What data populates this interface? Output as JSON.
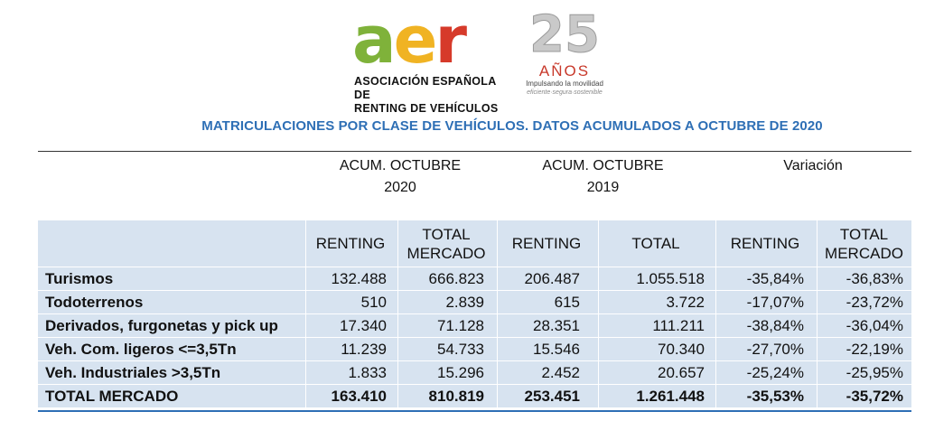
{
  "logo": {
    "aer": [
      "a",
      "e",
      "r"
    ],
    "org_line1": "ASOCIACIÓN ESPAÑOLA DE",
    "org_line2": "RENTING DE VEHÍCULOS",
    "anniv_number": "25",
    "anniv_word": "AÑOS",
    "tagline": "Impulsando la movilidad",
    "subtagline": "eficiente·segura·sostenible",
    "colors": {
      "a": "#7fb23a",
      "e": "#f0b323",
      "r": "#d63a2a",
      "title": "#2e6fb5",
      "header_bg": "#d7e3f0"
    }
  },
  "title": "MATRICULACIONES POR CLASE DE VEHÍCULOS. DATOS ACUMULADOS A OCTUBRE DE 2020",
  "periods": {
    "p2020": {
      "line1": "ACUM. OCTUBRE",
      "line2": "2020"
    },
    "p2019": {
      "line1": "ACUM. OCTUBRE",
      "line2": "2019"
    },
    "var": {
      "line1": "Variación",
      "line2": ""
    }
  },
  "columns": {
    "renting_2020": [
      "RENTING",
      ""
    ],
    "total_2020": [
      "TOTAL",
      "MERCADO"
    ],
    "renting_2019": [
      "RENTING",
      ""
    ],
    "total_2019": [
      "TOTAL",
      ""
    ],
    "renting_var": [
      "RENTING",
      ""
    ],
    "total_var": [
      "TOTAL",
      "MERCADO"
    ]
  },
  "rows": [
    {
      "label": "Turismos",
      "values": [
        "132.488",
        "666.823",
        "206.487",
        "1.055.518",
        "-35,84%",
        "-36,83%"
      ]
    },
    {
      "label": "Todoterrenos",
      "values": [
        "510",
        "2.839",
        "615",
        "3.722",
        "-17,07%",
        "-23,72%"
      ]
    },
    {
      "label": "Derivados, furgonetas y pick up",
      "values": [
        "17.340",
        "71.128",
        "28.351",
        "111.211",
        "-38,84%",
        "-36,04%"
      ]
    },
    {
      "label": "Veh. Com. ligeros <=3,5Tn",
      "values": [
        "11.239",
        "54.733",
        "15.546",
        "70.340",
        "-27,70%",
        "-22,19%"
      ]
    },
    {
      "label": "Veh. Industriales >3,5Tn",
      "values": [
        "1.833",
        "15.296",
        "2.452",
        "20.657",
        "-25,24%",
        "-25,95%"
      ]
    },
    {
      "label": "TOTAL MERCADO",
      "values": [
        "163.410",
        "810.819",
        "253.451",
        "1.261.448",
        "-35,53%",
        "-35,72%"
      ]
    }
  ]
}
